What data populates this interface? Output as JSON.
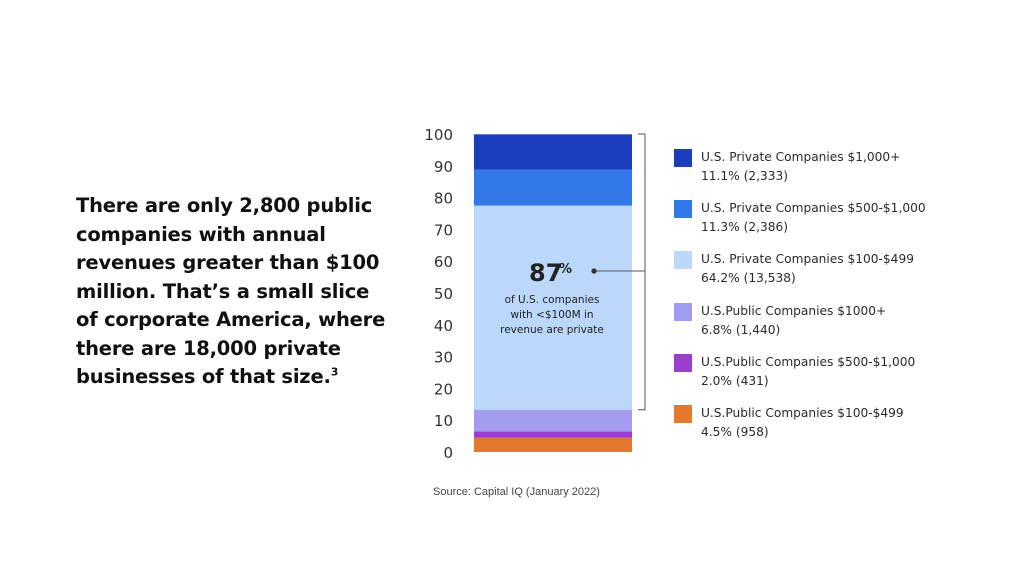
{
  "headline": {
    "text": "There are only 2,800 public companies with annual revenues greater than $100 million. That’s a small slice of corporate America, where there are 18,000 private businesses of that size.",
    "footnote": "3"
  },
  "chart_data": {
    "type": "bar",
    "stacked": true,
    "ylim": [
      0,
      100
    ],
    "yticks": [
      0,
      10,
      20,
      30,
      40,
      50,
      60,
      70,
      80,
      90,
      100
    ],
    "grid": false,
    "legend_position": "right",
    "series": [
      {
        "name": "U.S.Public Companies $100-$499",
        "value": 4.5,
        "count": "(958)",
        "pct_label": "4.5%",
        "color": "#E5782F"
      },
      {
        "name": "U.S.Public Companies $500-$1,000",
        "value": 2.0,
        "count": "(431)",
        "pct_label": "2.0%",
        "color": "#9B3FD0"
      },
      {
        "name": "U.S.Public Companies $1000+",
        "value": 6.8,
        "count": "(1,440)",
        "pct_label": "6.8%",
        "color": "#A29CF0"
      },
      {
        "name": "U.S. Private Companies $100-$499",
        "value": 64.2,
        "count": "(13,538)",
        "pct_label": "64.2%",
        "color": "#BBD8FB"
      },
      {
        "name": "U.S. Private Companies $500-$1,000",
        "value": 11.3,
        "count": "(2,386)",
        "pct_label": "11.3%",
        "color": "#3278E8"
      },
      {
        "name": "U.S. Private Companies $1,000+",
        "value": 11.1,
        "count": "(2,333)",
        "pct_label": "11.1%",
        "color": "#1A3DBD"
      }
    ],
    "legend_order": [
      5,
      4,
      3,
      2,
      1,
      0
    ],
    "annotation": {
      "big_number": "87",
      "big_suffix": "%",
      "lines": [
        "of U.S. companies",
        "with <$100M in",
        "revenue are private"
      ]
    }
  },
  "source": "Source: Capital IQ (January 2022)"
}
